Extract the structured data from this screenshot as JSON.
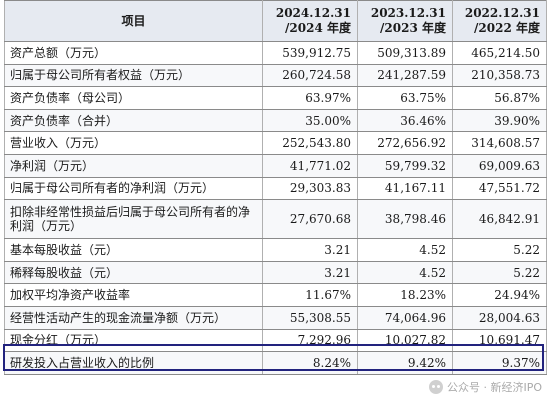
{
  "table": {
    "header": {
      "item": "项目",
      "col1": "2024.12.31\n/2024 年度",
      "col2": "2023.12.31\n/2023 年度",
      "col3": "2022.12.31\n/2022 年度"
    },
    "rows": [
      {
        "label": "资产总额（万元）",
        "v1": "539,912.75",
        "v2": "509,313.89",
        "v3": "465,214.50"
      },
      {
        "label": "归属于母公司所有者权益（万元）",
        "v1": "260,724.58",
        "v2": "241,287.59",
        "v3": "210,358.73"
      },
      {
        "label": "资产负债率（母公司）",
        "v1": "63.97%",
        "v2": "63.75%",
        "v3": "56.87%"
      },
      {
        "label": "资产负债率（合并）",
        "v1": "35.00%",
        "v2": "36.46%",
        "v3": "39.90%"
      },
      {
        "label": "营业收入（万元）",
        "v1": "252,543.80",
        "v2": "272,656.92",
        "v3": "314,608.57"
      },
      {
        "label": "净利润（万元）",
        "v1": "41,771.02",
        "v2": "59,799.32",
        "v3": "69,009.63"
      },
      {
        "label": "归属于母公司所有者的净利润（万元）",
        "v1": "29,303.83",
        "v2": "41,167.11",
        "v3": "47,551.72"
      },
      {
        "label": "扣除非经常性损益后归属于母公司所有者的净利润（万元）",
        "v1": "27,670.68",
        "v2": "38,798.46",
        "v3": "46,842.91"
      },
      {
        "label": "基本每股收益（元）",
        "v1": "3.21",
        "v2": "4.52",
        "v3": "5.22"
      },
      {
        "label": "稀释每股收益（元）",
        "v1": "3.21",
        "v2": "4.52",
        "v3": "5.22"
      },
      {
        "label": "加权平均净资产收益率",
        "v1": "11.67%",
        "v2": "18.23%",
        "v3": "24.94%"
      },
      {
        "label": "经营性活动产生的现金流量净额（万元）",
        "v1": "55,308.55",
        "v2": "74,064.96",
        "v3": "28,004.63"
      },
      {
        "label": "现金分红（万元）",
        "v1": "7,292.96",
        "v2": "10,027.82",
        "v3": "10,691.47"
      },
      {
        "label": "研发投入占营业收入的比例",
        "v1": "8.24%",
        "v2": "9.42%",
        "v3": "9.37%"
      }
    ]
  },
  "watermark": {
    "text": "公众号 · 新经济IPO",
    "icon": "wechat-icon"
  },
  "colors": {
    "header_bg": "#e6eaf1",
    "highlight_border": "#22237e"
  }
}
